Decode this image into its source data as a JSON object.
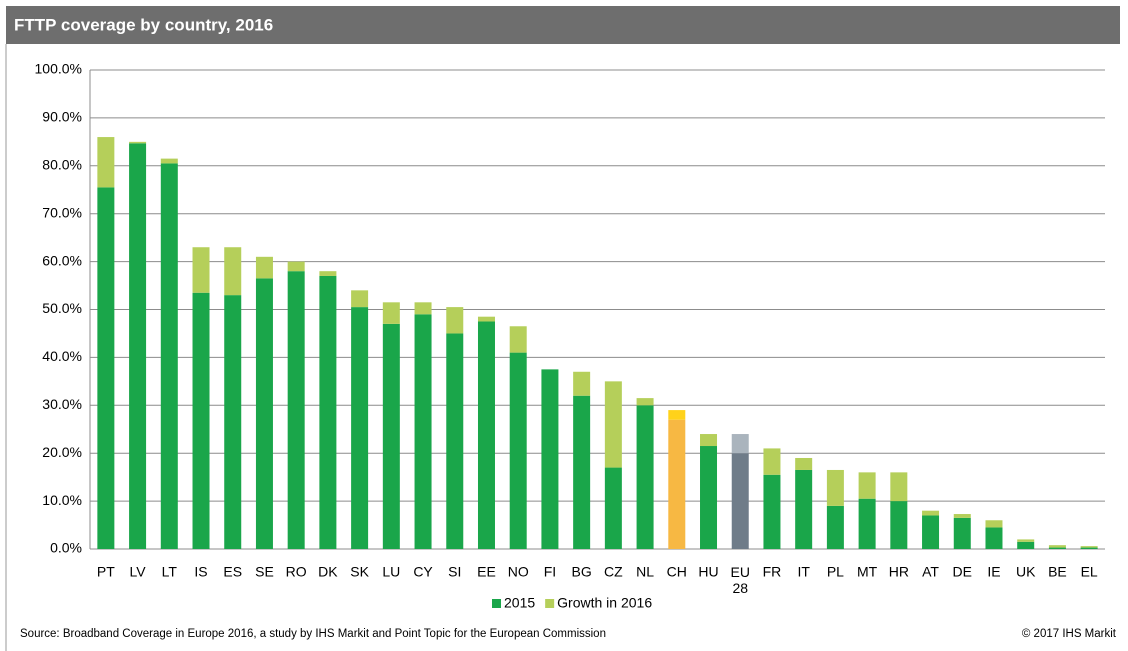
{
  "chart_data": {
    "type": "stacked_bar",
    "title": "FTTP coverage by country, 2016",
    "categories": [
      "PT",
      "LV",
      "LT",
      "IS",
      "ES",
      "SE",
      "RO",
      "DK",
      "SK",
      "LU",
      "CY",
      "SI",
      "EE",
      "NO",
      "FI",
      "BG",
      "CZ",
      "NL",
      "CH",
      "HU",
      "EU 28",
      "FR",
      "IT",
      "PL",
      "MT",
      "HR",
      "AT",
      "DE",
      "IE",
      "UK",
      "BE",
      "EL"
    ],
    "series": [
      {
        "name": "2015",
        "color": "#1aa64a",
        "point_colors": [
          {
            "index": 18,
            "color": "#f7b843"
          },
          {
            "index": 20,
            "color": "#6f7c89"
          }
        ],
        "values": [
          75.5,
          84.7,
          80.5,
          53.5,
          53,
          56.5,
          58,
          57,
          50.5,
          47,
          49,
          45,
          47.5,
          41,
          37.5,
          32,
          17,
          30,
          27,
          21.5,
          20,
          15.5,
          16.5,
          9,
          10.5,
          10,
          7,
          6.5,
          4.5,
          1.5,
          0.3,
          0.3
        ]
      },
      {
        "name": "Growth in 2016",
        "color": "#b5cf5a",
        "point_colors": [
          {
            "index": 18,
            "color": "#ffd21a"
          },
          {
            "index": 20,
            "color": "#aab4bd"
          }
        ],
        "values": [
          10.5,
          0.3,
          1,
          9.5,
          10,
          4.5,
          2,
          1,
          3.5,
          4.5,
          2.5,
          5.5,
          1,
          5.5,
          0,
          5,
          18,
          1.5,
          2,
          2.5,
          4,
          5.5,
          2.5,
          7.5,
          5.5,
          6,
          1,
          0.8,
          1.5,
          0.5,
          0.5,
          0.3
        ]
      }
    ],
    "ylim": [
      0,
      100
    ],
    "yticks": [
      {
        "value": 0,
        "label": "0.0%"
      },
      {
        "value": 10,
        "label": "10.0%"
      },
      {
        "value": 20,
        "label": "20.0%"
      },
      {
        "value": 30,
        "label": "30.0%"
      },
      {
        "value": 40,
        "label": "40.0%"
      },
      {
        "value": 50,
        "label": "50.0%"
      },
      {
        "value": 60,
        "label": "60.0%"
      },
      {
        "value": 70,
        "label": "70.0%"
      },
      {
        "value": 80,
        "label": "80.0%"
      },
      {
        "value": 90,
        "label": "90.0%"
      },
      {
        "value": 100,
        "label": "100.0%"
      }
    ],
    "grid": true,
    "legend": "bottom",
    "source": "Source: Broadband Coverage in Europe 2016, a study by IHS Markit and Point Topic for the European Commission",
    "copyright": "© 2017 IHS Markit"
  }
}
